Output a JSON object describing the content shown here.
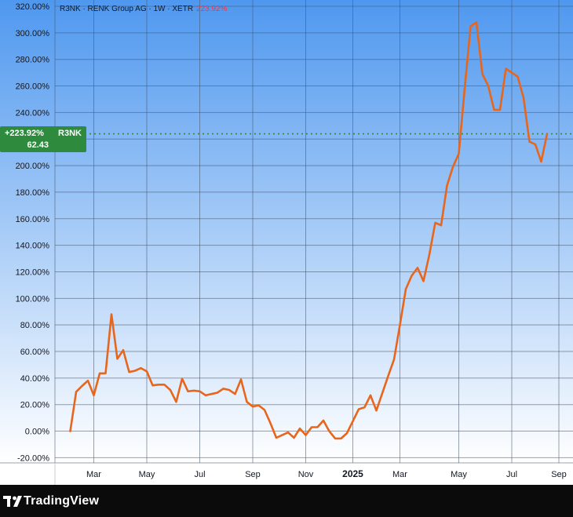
{
  "header": {
    "title": "R3NK · RENK Group AG · 1W · XETR",
    "change": "223.92%"
  },
  "price_label": {
    "change": "+223.92%",
    "symbol": "R3NK",
    "price": "62.43"
  },
  "branding": {
    "name": "TradingView"
  },
  "colors": {
    "series": "#e8661c",
    "bg_top": "#4f98ef",
    "bg_bottom": "#ffffff",
    "badge": "#2e8b3e",
    "current_line": "#2e8b3e"
  },
  "chart_data": {
    "type": "line",
    "series_name": "R3NK",
    "y_unit": "%",
    "ylim": [
      -22,
      322
    ],
    "y_ticks": [
      "-20.00%",
      "0.00%",
      "20.00%",
      "40.00%",
      "60.00%",
      "80.00%",
      "100.00%",
      "120.00%",
      "140.00%",
      "160.00%",
      "180.00%",
      "200.00%",
      "220.00%",
      "240.00%",
      "260.00%",
      "280.00%",
      "300.00%",
      "320.00%"
    ],
    "x_ticks": [
      "Mar",
      "May",
      "Jul",
      "Sep",
      "Nov",
      "2025",
      "Mar",
      "May",
      "Jul",
      "Sep"
    ],
    "x_tick_weeks": [
      4,
      13,
      22,
      31,
      40,
      48,
      56,
      66,
      75,
      83
    ],
    "current_value": 223.92,
    "grid": true,
    "values": [
      0,
      29.5,
      34,
      38,
      27,
      43.5,
      43.5,
      88,
      54.5,
      61,
      44.5,
      45.5,
      47.5,
      45,
      34.5,
      35,
      35,
      31,
      22,
      39.5,
      30,
      30.5,
      30,
      27,
      28,
      29,
      32,
      31,
      28,
      39,
      22,
      18.5,
      19.5,
      16,
      6,
      -5,
      -3,
      -1,
      -5,
      2,
      -3,
      3,
      3,
      8,
      0,
      -5.5,
      -5.5,
      -1.5,
      7.5,
      16.5,
      18,
      27,
      15.5,
      28.5,
      41.5,
      54,
      80,
      107,
      117,
      123,
      113,
      133,
      157,
      155,
      185,
      199,
      209,
      258,
      305,
      308,
      269,
      260,
      242,
      242,
      273,
      270,
      267,
      251,
      218,
      216,
      203,
      224
    ]
  }
}
